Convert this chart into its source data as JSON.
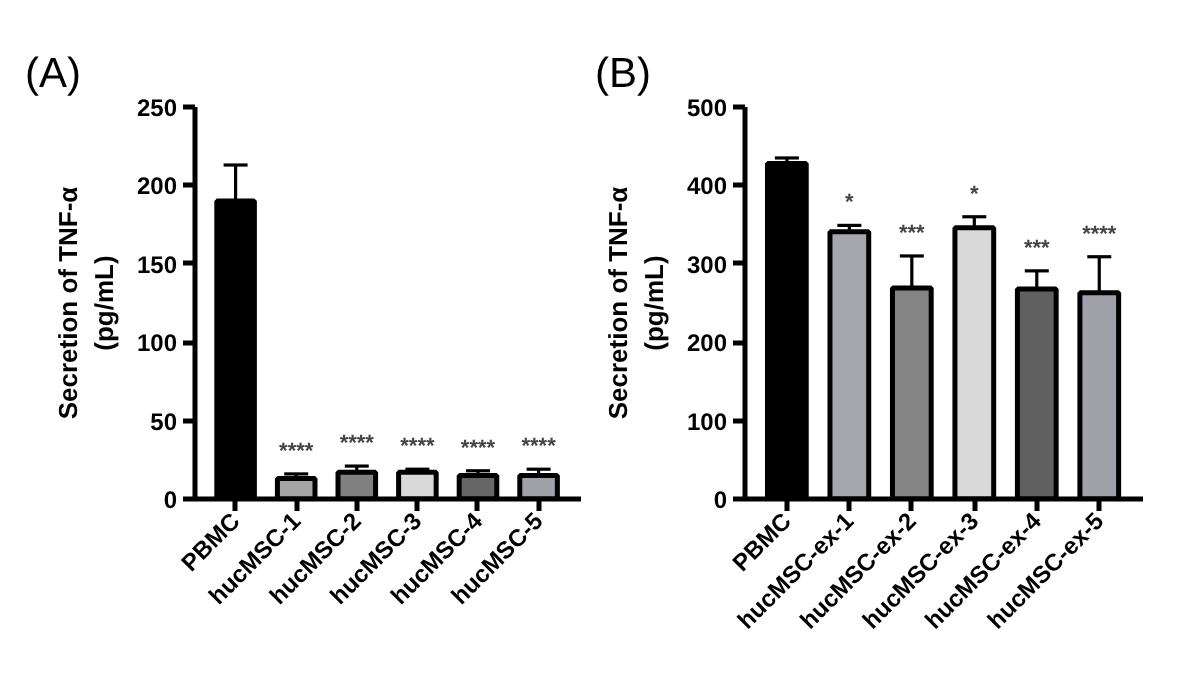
{
  "chart_data": [
    {
      "type": "bar",
      "title": "(A)",
      "ylabel": "Secretion of TNF-α\n(pg/mL)",
      "categories": [
        "PBMC",
        "hucMSC-1",
        "hucMSC-2",
        "hucMSC-3",
        "hucMSC-4",
        "hucMSC-5"
      ],
      "values": [
        190,
        13,
        17,
        17,
        15,
        15
      ],
      "colors": [
        "#000000",
        "#a6a6a6",
        "#808080",
        "#d9d9d9",
        "#666666",
        "#a0a0a8"
      ],
      "errors": [
        [
          190,
          213
        ],
        [
          13,
          16
        ],
        [
          17,
          21
        ],
        [
          17,
          19
        ],
        [
          15,
          18
        ],
        [
          15,
          19
        ]
      ],
      "ylim": [
        0,
        250
      ],
      "yticks": [
        0,
        50,
        100,
        150,
        200,
        250
      ],
      "annotations": [
        "****",
        "****",
        "****",
        "****",
        "****"
      ]
    },
    {
      "type": "bar",
      "title": "(B)",
      "ylabel": "Secretion of TNF-α\n(pg/mL)",
      "categories": [
        "PBMC",
        "hucMSC-ex-1",
        "hucMSC-ex-2",
        "hucMSC-ex-3",
        "hucMSC-ex-4",
        "hucMSC-ex-5"
      ],
      "values": [
        428,
        341,
        269,
        346,
        268,
        263
      ],
      "colors": [
        "#000000",
        "#a6a6ad",
        "#858585",
        "#d9d9d9",
        "#606060",
        "#a0a0a8"
      ],
      "errors": [
        [
          428,
          435
        ],
        [
          341,
          349
        ],
        [
          269,
          310
        ],
        [
          346,
          360
        ],
        [
          268,
          291
        ],
        [
          263,
          309
        ]
      ],
      "ylim": [
        0,
        500
      ],
      "yticks": [
        0,
        100,
        200,
        300,
        400,
        500
      ],
      "annotations": [
        "*",
        "***",
        "*",
        "***",
        "****"
      ]
    }
  ]
}
